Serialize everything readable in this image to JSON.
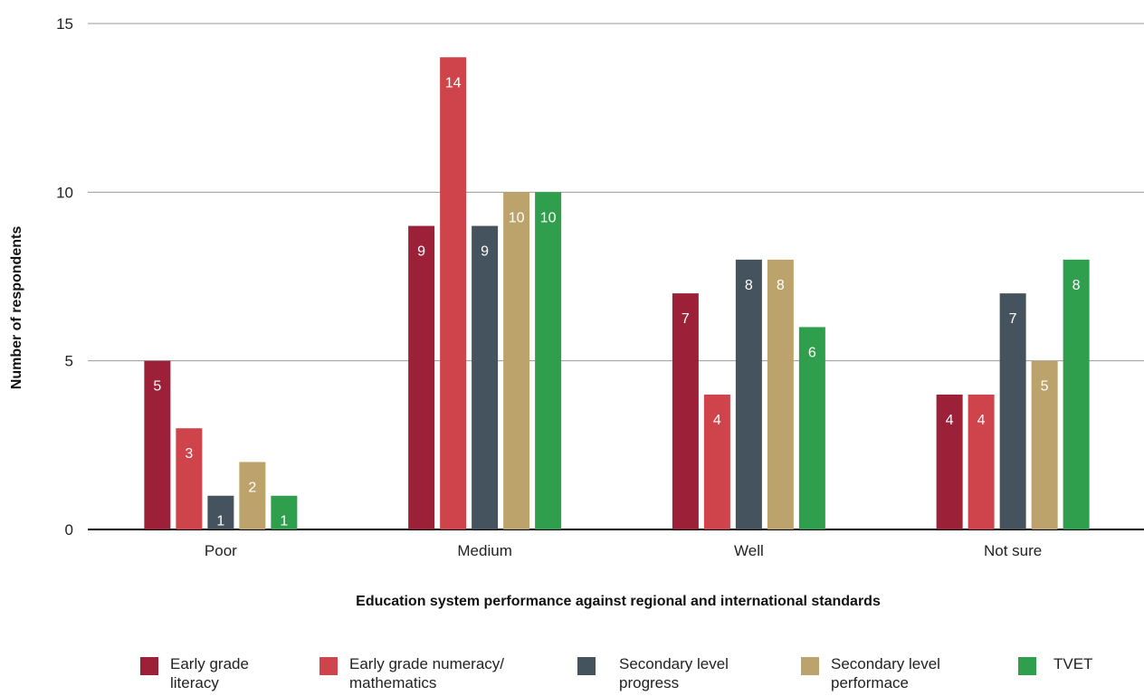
{
  "chart_data": {
    "type": "bar",
    "ylabel": "Number of respondents",
    "xlabel": "Education system performance against regional and international standards",
    "ylim": [
      0,
      15
    ],
    "yticks": [
      0,
      5,
      10,
      15
    ],
    "grid": true,
    "legend_position": "bottom",
    "categories": [
      "Poor",
      "Medium",
      "Well",
      "Not sure"
    ],
    "series": [
      {
        "name": "Early grade literacy",
        "color": "#9b2038",
        "values": [
          5,
          9,
          7,
          4
        ]
      },
      {
        "name": "Early grade numeracy/ mathematics",
        "color": "#cf434a",
        "values": [
          3,
          14,
          4,
          4
        ]
      },
      {
        "name": "Secondary level progress",
        "color": "#44535e",
        "values": [
          1,
          9,
          8,
          7
        ]
      },
      {
        "name": "Secondary level performace",
        "color": "#bca36c",
        "values": [
          2,
          10,
          8,
          5
        ]
      },
      {
        "name": "TVET",
        "color": "#2f9e4d",
        "values": [
          1,
          10,
          6,
          8
        ]
      }
    ]
  },
  "legend": [
    {
      "line1": "Early grade",
      "line2": "literacy"
    },
    {
      "line1": "Early grade numeracy/",
      "line2": "mathematics"
    },
    {
      "line1": "Secondary level",
      "line2": "progress"
    },
    {
      "line1": "Secondary level",
      "line2": "performace"
    },
    {
      "line1": "TVET",
      "line2": ""
    }
  ]
}
